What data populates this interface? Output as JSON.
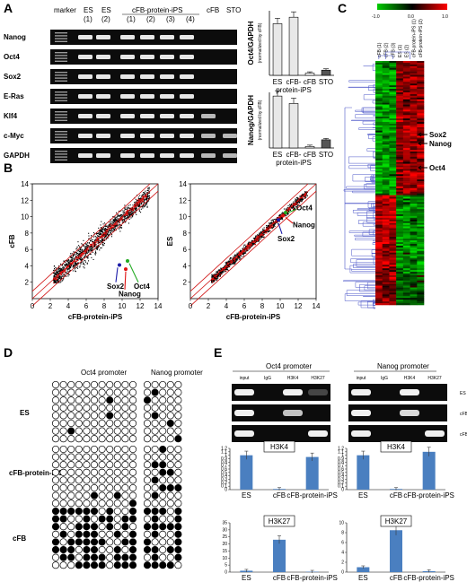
{
  "panel_letters": {
    "a": "A",
    "b": "B",
    "c": "C",
    "d": "D",
    "e": "E"
  },
  "panelA": {
    "lane_top": [
      "marker",
      "ES",
      "ES",
      "",
      "cFB-protein-iPS",
      "",
      "",
      "cFB",
      "STO"
    ],
    "lane_sub": [
      "",
      "(1)",
      "(2)",
      "(1)",
      "(2)",
      "(3)",
      "(4)",
      "",
      ""
    ],
    "genes": [
      "Nanog",
      "Oct4",
      "Sox2",
      "E-Ras",
      "Klf4",
      "c-Myc",
      "GAPDH"
    ],
    "gel_pattern": [
      [
        1,
        1,
        1,
        1,
        1,
        1,
        0,
        0
      ],
      [
        1,
        1,
        1,
        1,
        1,
        1,
        0,
        0
      ],
      [
        1,
        1,
        1,
        1,
        1,
        1,
        0,
        0
      ],
      [
        1,
        1,
        1,
        1,
        1,
        1,
        0,
        0
      ],
      [
        1,
        1,
        1,
        1,
        1,
        1,
        1,
        0
      ],
      [
        1,
        1,
        1,
        1,
        1,
        1,
        1,
        1
      ],
      [
        1,
        1,
        1,
        1,
        1,
        1,
        1,
        1
      ]
    ]
  },
  "chart_data": [
    {
      "type": "bar",
      "ylabel": "Oct4/GAPDH (normalized by cFB)",
      "categories": [
        "ES",
        "cFB-protein-iPS",
        "cFB",
        "STO"
      ],
      "values": [
        120,
        135,
        5,
        12
      ]
    },
    {
      "type": "bar",
      "ylabel": "Nanog/GAPDH (normalized by cFB)",
      "categories": [
        "ES",
        "cFB-protein-iPS",
        "cFB",
        "STO"
      ],
      "values": [
        140,
        120,
        4,
        22
      ]
    },
    {
      "type": "scatter",
      "xlabel": "cFB-protein-iPS",
      "ylabel": "cFB",
      "xlim": [
        0,
        14
      ],
      "ylim": [
        0,
        14
      ],
      "xticks": [
        0,
        2,
        4,
        6,
        8,
        10,
        12,
        14
      ],
      "yticks": [
        2,
        4,
        6,
        8,
        10,
        12,
        14
      ],
      "highlights": [
        {
          "name": "Sox2",
          "x": 9.7,
          "y": 4.1
        },
        {
          "name": "Nanog",
          "x": 10.4,
          "y": 3.6
        },
        {
          "name": "Oct4",
          "x": 10.6,
          "y": 4.6
        }
      ]
    },
    {
      "type": "scatter",
      "xlabel": "cFB-protein-iPS",
      "ylabel": "ES",
      "xlim": [
        0,
        14
      ],
      "ylim": [
        0,
        14
      ],
      "xticks": [
        0,
        2,
        4,
        6,
        8,
        10,
        12,
        14
      ],
      "yticks": [
        2,
        4,
        6,
        8,
        10,
        12,
        14
      ],
      "highlights": [
        {
          "name": "Sox2",
          "x": 9.8,
          "y": 9.6
        },
        {
          "name": "Nanog",
          "x": 10.3,
          "y": 10.1
        },
        {
          "name": "Oct4",
          "x": 10.6,
          "y": 10.5
        }
      ]
    },
    {
      "type": "bar",
      "title": "H3K4",
      "region": "Oct4 promoter",
      "categories": [
        "ES",
        "cFB",
        "cFB-protein-iPS"
      ],
      "values": [
        1.0,
        0.02,
        0.95
      ],
      "yticks": [
        "0",
        "0.1",
        "0.2",
        "0.3",
        "0.4",
        "0.5",
        "0.6",
        "0.7",
        "0.8",
        "0.9",
        "1",
        "1.1",
        "1.2"
      ]
    },
    {
      "type": "bar",
      "title": "H3K4",
      "region": "Nanog promoter",
      "categories": [
        "ES",
        "cFB",
        "cFB-protein-iPS"
      ],
      "values": [
        1.0,
        0.02,
        1.1
      ],
      "yticks": [
        "0",
        "0.1",
        "0.2",
        "0.3",
        "0.4",
        "0.5",
        "0.6",
        "0.7",
        "0.8",
        "0.9",
        "1",
        "1.1",
        "1.2"
      ]
    },
    {
      "type": "bar",
      "title": "H3K27",
      "region": "Oct4 promoter",
      "categories": [
        "ES",
        "cFB",
        "cFB-protein-iPS"
      ],
      "values": [
        1,
        23,
        0.3
      ],
      "yticks": [
        "0",
        "5",
        "10",
        "15",
        "20",
        "25",
        "30",
        "35"
      ]
    },
    {
      "type": "bar",
      "title": "H3K27",
      "region": "Nanog promoter",
      "categories": [
        "ES",
        "cFB",
        "cFB-protein-iPS"
      ],
      "values": [
        1,
        8.5,
        0.2
      ],
      "yticks": [
        "0",
        "2",
        "4",
        "6",
        "8",
        "10"
      ]
    }
  ],
  "panelC": {
    "scale_min": "-1.0",
    "scale_mid": "0.0",
    "scale_max": "1.0",
    "columns": [
      "cFB (1)",
      "cFB (2)",
      "cFB (3)",
      "ES (1)",
      "ES (2)",
      "cFB-protein-iPS (1)",
      "cFB-protein-iPS (2)"
    ],
    "genes": [
      "Sox2",
      "Nanog",
      "Oct4"
    ]
  },
  "panelD": {
    "headers": [
      "Oct4 promoter",
      "Nanog promoter"
    ],
    "rows": [
      "ES",
      "cFB-protein-iPS",
      "cFB"
    ]
  },
  "panelE": {
    "headers": [
      "Oct4 promoter",
      "Nanog promoter"
    ],
    "lanes": [
      "input",
      "IgG",
      "H3K4",
      "H3K27"
    ],
    "rows": [
      "ES",
      "cFB-protein-iPS",
      "cFB"
    ]
  }
}
